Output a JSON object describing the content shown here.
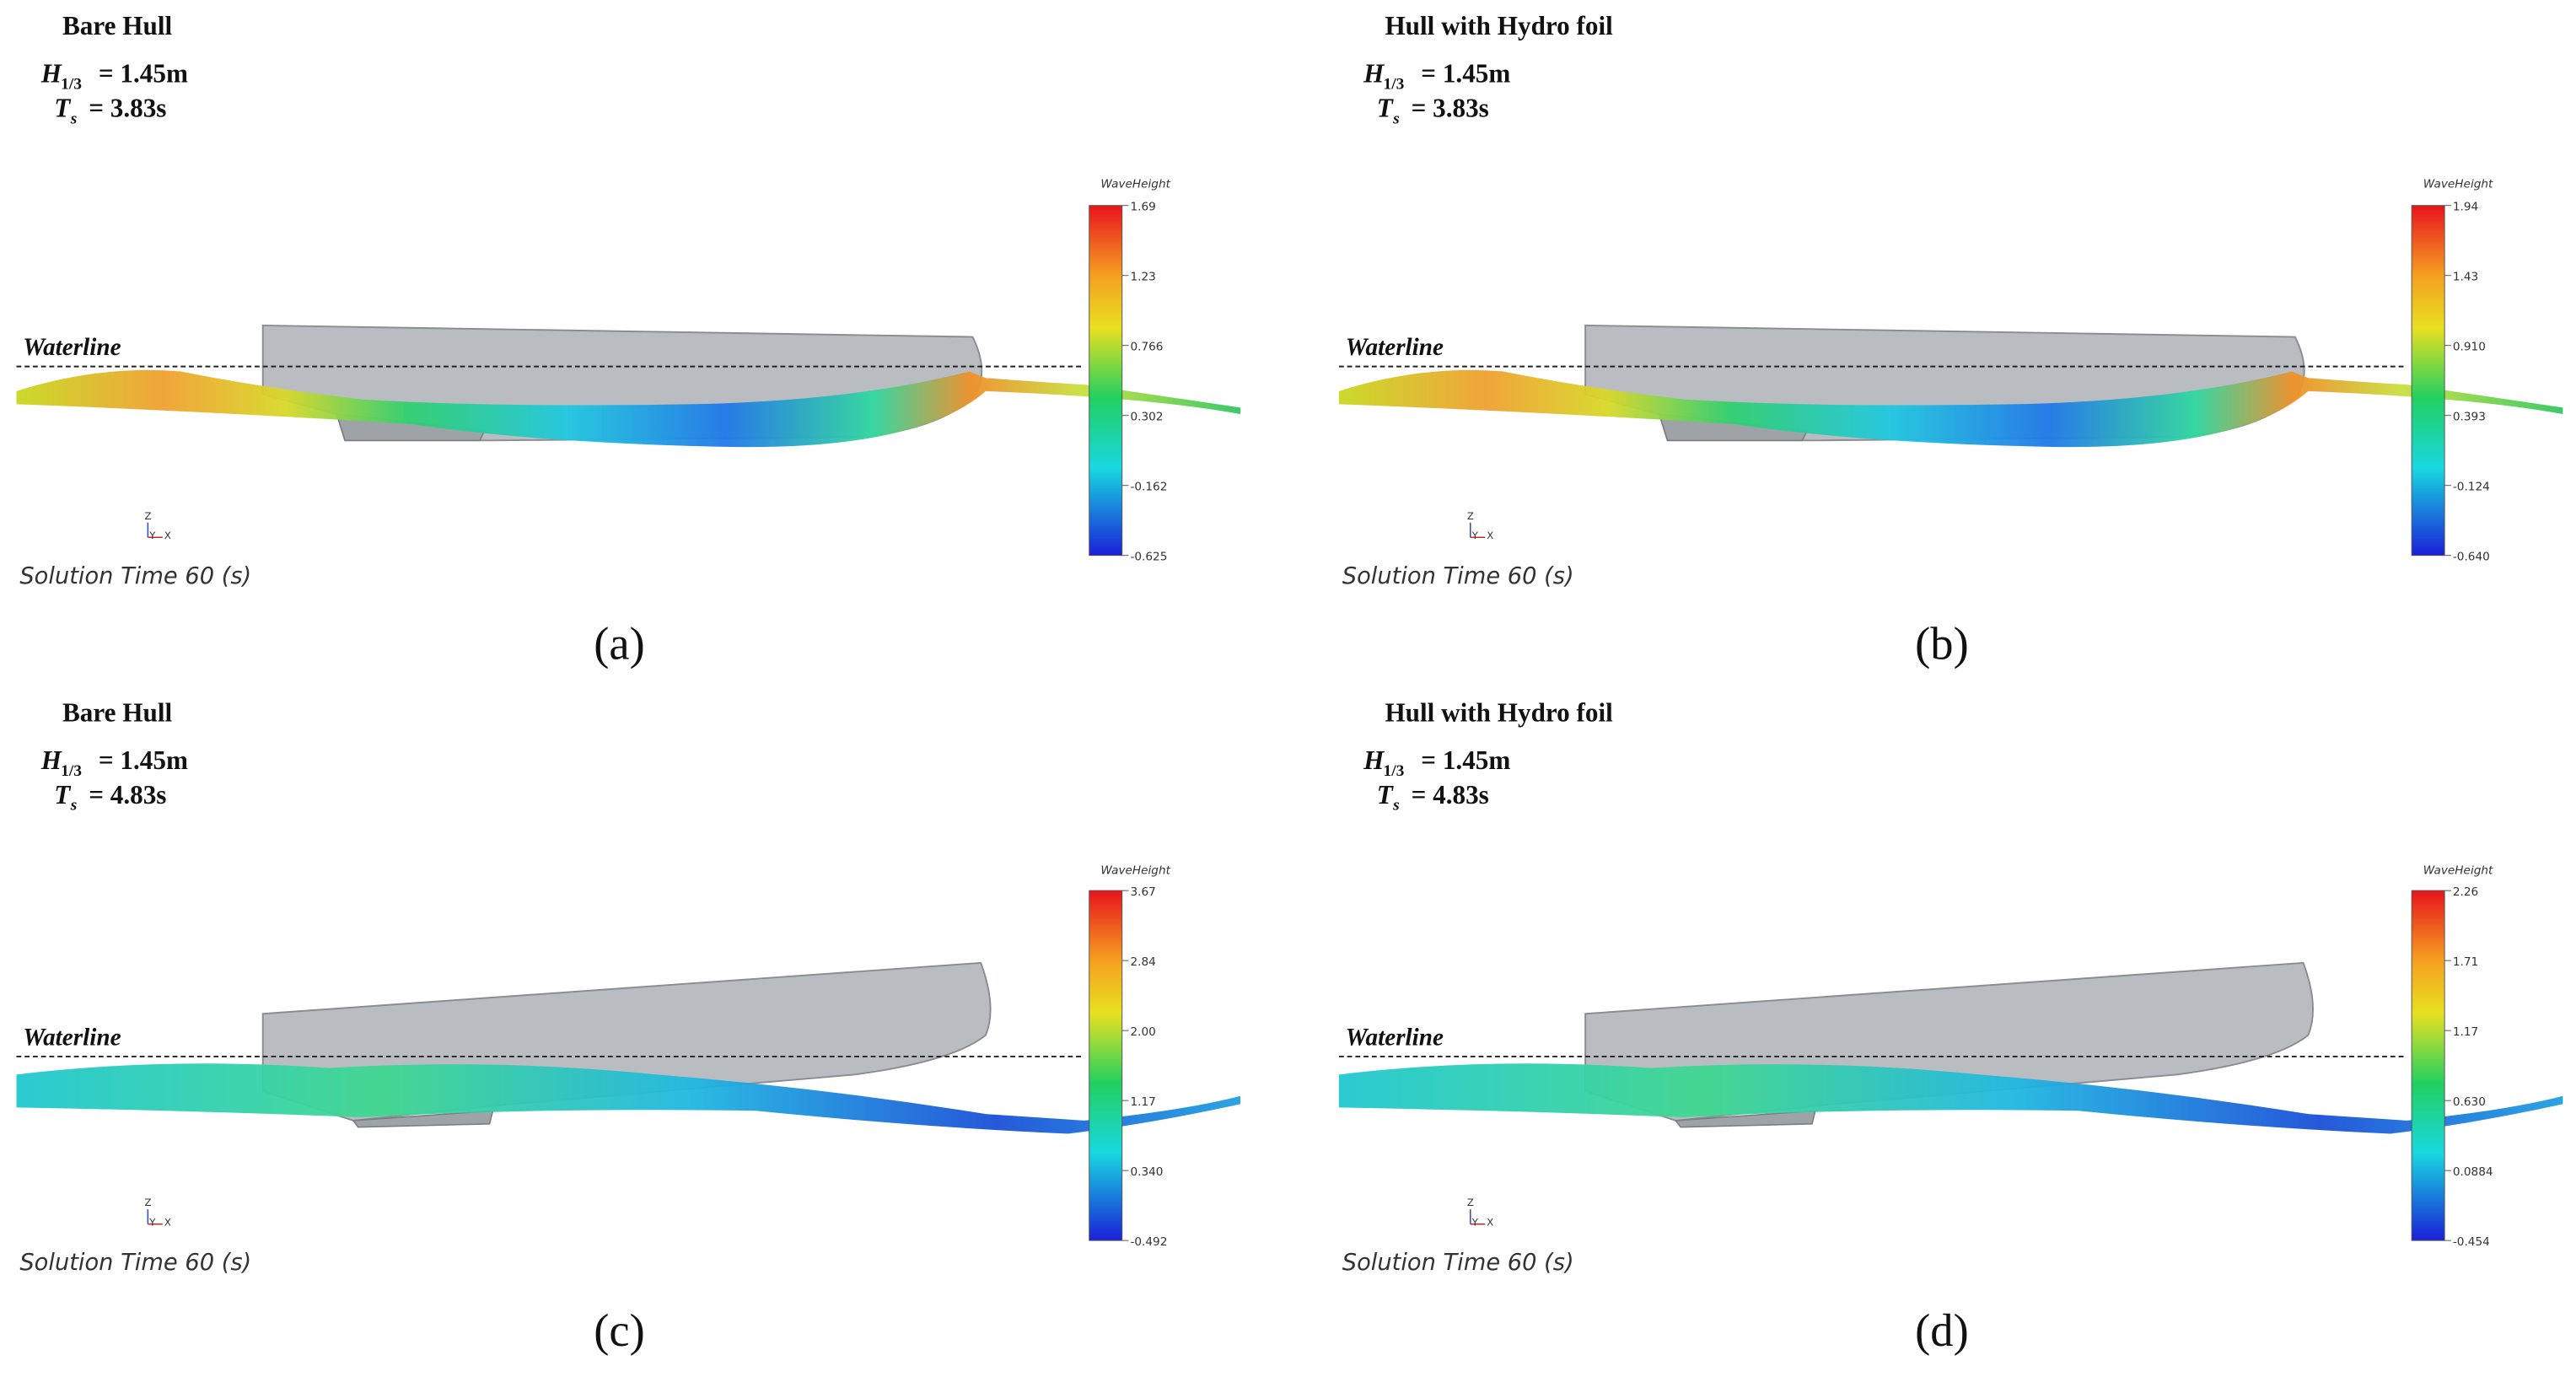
{
  "panels": [
    {
      "title": "Bare Hull",
      "h_symbol": "H",
      "h_sub": "1/3",
      "h_value": "= 1.45m",
      "t_symbol": "T",
      "t_sub": "s",
      "t_value": "= 3.83s",
      "waterline": "Waterline",
      "legend_title": "WaveHeight",
      "colorbar_ticks": [
        "1.69",
        "1.23",
        "0.766",
        "0.302",
        "-0.162",
        "-0.625"
      ],
      "axis_labels": [
        "Z",
        "Y",
        "X"
      ],
      "solution_time": "Solution Time 60 (s)",
      "label": "(a)"
    },
    {
      "title": "Hull with Hydro foil",
      "h_symbol": "H",
      "h_sub": "1/3",
      "h_value": "= 1.45m",
      "t_symbol": "T",
      "t_sub": "s",
      "t_value": "= 3.83s",
      "waterline": "Waterline",
      "legend_title": "WaveHeight",
      "colorbar_ticks": [
        "1.94",
        "1.43",
        "0.910",
        "0.393",
        "-0.124",
        "-0.640"
      ],
      "axis_labels": [
        "Z",
        "Y",
        "X"
      ],
      "solution_time": "Solution Time 60 (s)",
      "label": "(b)"
    },
    {
      "title": "Bare Hull",
      "h_symbol": "H",
      "h_sub": "1/3",
      "h_value": "= 1.45m",
      "t_symbol": "T",
      "t_sub": "s",
      "t_value": "= 4.83s",
      "waterline": "Waterline",
      "legend_title": "WaveHeight",
      "colorbar_ticks": [
        "3.67",
        "2.84",
        "2.00",
        "1.17",
        "0.340",
        "-0.492"
      ],
      "axis_labels": [
        "Z",
        "Y",
        "X"
      ],
      "solution_time": "Solution Time 60 (s)",
      "label": "(c)"
    },
    {
      "title": "Hull with Hydro foil",
      "h_symbol": "H",
      "h_sub": "1/3",
      "h_value": "= 1.45m",
      "t_symbol": "T",
      "t_sub": "s",
      "t_value": "= 4.83s",
      "waterline": "Waterline",
      "legend_title": "WaveHeight",
      "colorbar_ticks": [
        "2.26",
        "1.71",
        "1.17",
        "0.630",
        "0.0884",
        "-0.454"
      ],
      "axis_labels": [
        "Z",
        "Y",
        "X"
      ],
      "solution_time": "Solution Time 60 (s)",
      "label": "(d)"
    }
  ]
}
